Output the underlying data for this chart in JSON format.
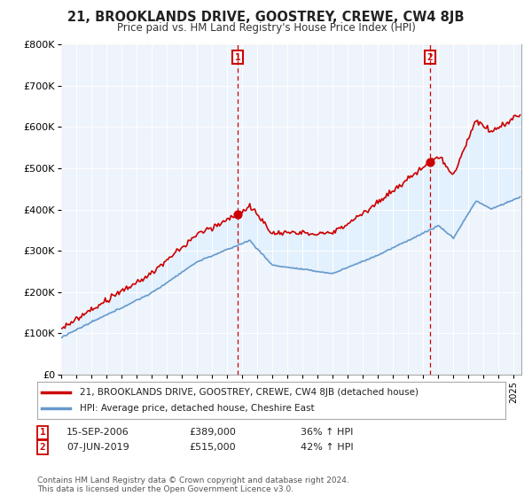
{
  "title": "21, BROOKLANDS DRIVE, GOOSTREY, CREWE, CW4 8JB",
  "subtitle": "Price paid vs. HM Land Registry's House Price Index (HPI)",
  "property_label": "21, BROOKLANDS DRIVE, GOOSTREY, CREWE, CW4 8JB (detached house)",
  "hpi_label": "HPI: Average price, detached house, Cheshire East",
  "transaction1_date": "15-SEP-2006",
  "transaction1_price": "£389,000",
  "transaction1_hpi": "36% ↑ HPI",
  "transaction2_date": "07-JUN-2019",
  "transaction2_price": "£515,000",
  "transaction2_hpi": "42% ↑ HPI",
  "footer": "Contains HM Land Registry data © Crown copyright and database right 2024.\nThis data is licensed under the Open Government Licence v3.0.",
  "property_color": "#cc0000",
  "hpi_color": "#6699cc",
  "fill_color": "#ddeeff",
  "vline_color": "#cc0000",
  "marker_box_color": "#cc0000",
  "ylim": [
    0,
    800000
  ],
  "yticks": [
    0,
    100000,
    200000,
    300000,
    400000,
    500000,
    600000,
    700000,
    800000
  ],
  "ytick_labels": [
    "£0",
    "£100K",
    "£200K",
    "£300K",
    "£400K",
    "£500K",
    "£600K",
    "£700K",
    "£800K"
  ],
  "xlim_start": 1995.0,
  "xlim_end": 2025.5,
  "transaction1_x": 2006.71,
  "transaction2_x": 2019.44,
  "background_color": "#ffffff",
  "plot_bg_color": "#eef4fb",
  "grid_color": "#ffffff"
}
